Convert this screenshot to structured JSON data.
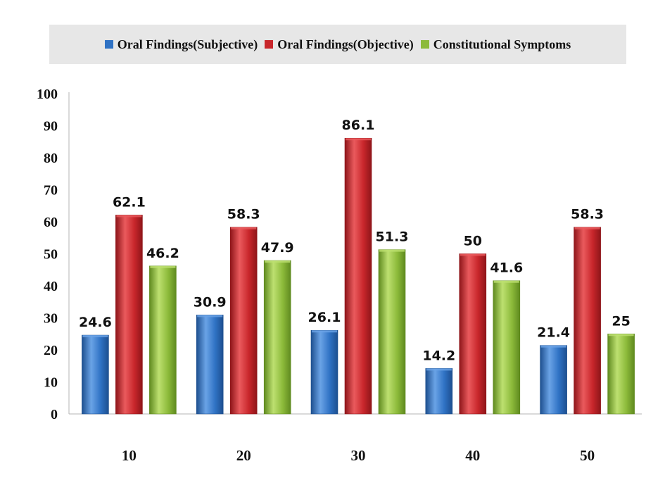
{
  "chart_data": {
    "type": "bar",
    "categories": [
      "10",
      "20",
      "30",
      "40",
      "50"
    ],
    "series": [
      {
        "name": "Oral Findings(Subjective)",
        "values": [
          24.6,
          30.9,
          26.1,
          14.2,
          21.4
        ],
        "color": "#2f72c4",
        "color_light": "#6aa3e6",
        "color_dark": "#1d4f8f"
      },
      {
        "name": "Oral Findings(Objective)",
        "values": [
          62.1,
          58.3,
          86.1,
          50,
          58.3
        ],
        "color": "#c8262b",
        "color_light": "#ea5a5d",
        "color_dark": "#8e1519"
      },
      {
        "name": "Constitutional Symptoms",
        "values": [
          46.2,
          47.9,
          51.3,
          41.6,
          25
        ],
        "color": "#8cba3a",
        "color_light": "#bde070",
        "color_dark": "#5f8a1f"
      }
    ],
    "yticks": [
      "0",
      "10",
      "20",
      "30",
      "40",
      "50",
      "60",
      "70",
      "80",
      "90",
      "100"
    ],
    "ylim": [
      0,
      100
    ],
    "title": "",
    "xlabel": "",
    "ylabel": "",
    "legend_position": "top",
    "grid": false
  }
}
